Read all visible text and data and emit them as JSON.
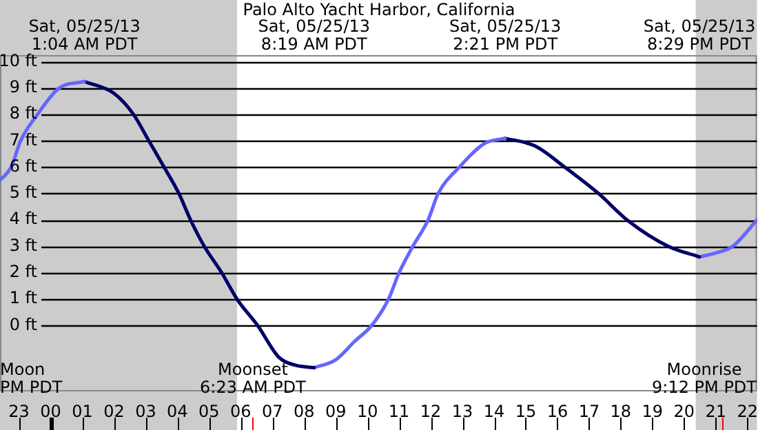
{
  "chart_data": {
    "type": "line",
    "title": "Palo Alto Yacht Harbor, California",
    "xlim": [
      "--05-24T22:24",
      "--05-25T22:18"
    ],
    "ylim": [
      -2.5,
      10.25
    ],
    "xticks": [
      {
        "value": "--05-24T23:00",
        "label": "23"
      },
      {
        "value": "--05-25T00:00",
        "label": "00"
      },
      {
        "value": "--05-25T01:00",
        "label": "01"
      },
      {
        "value": "--05-25T02:00",
        "label": "02"
      },
      {
        "value": "--05-25T03:00",
        "label": "03"
      },
      {
        "value": "--05-25T04:00",
        "label": "04"
      },
      {
        "value": "--05-25T05:00",
        "label": "05"
      },
      {
        "value": "--05-25T06:00",
        "label": "06"
      },
      {
        "value": "--05-25T07:00",
        "label": "07"
      },
      {
        "value": "--05-25T08:00",
        "label": "08"
      },
      {
        "value": "--05-25T09:00",
        "label": "09"
      },
      {
        "value": "--05-25T10:00",
        "label": "10"
      },
      {
        "value": "--05-25T11:00",
        "label": "11"
      },
      {
        "value": "--05-25T12:00",
        "label": "12"
      },
      {
        "value": "--05-25T13:00",
        "label": "13"
      },
      {
        "value": "--05-25T14:00",
        "label": "14"
      },
      {
        "value": "--05-25T15:00",
        "label": "15"
      },
      {
        "value": "--05-25T16:00",
        "label": "16"
      },
      {
        "value": "--05-25T17:00",
        "label": "17"
      },
      {
        "value": "--05-25T18:00",
        "label": "18"
      },
      {
        "value": "--05-25T19:00",
        "label": "19"
      },
      {
        "value": "--05-25T20:00",
        "label": "20"
      },
      {
        "value": "--05-25T21:00",
        "label": "21"
      },
      {
        "value": "--05-25T22:00",
        "label": "22"
      }
    ],
    "yticks": [
      {
        "value": 0,
        "label": "0 ft"
      },
      {
        "value": 1,
        "label": "1 ft"
      },
      {
        "value": 2,
        "label": "2 ft"
      },
      {
        "value": 3,
        "label": "3 ft"
      },
      {
        "value": 4,
        "label": "4 ft"
      },
      {
        "value": 5,
        "label": "5 ft"
      },
      {
        "value": 6,
        "label": "6 ft"
      },
      {
        "value": 7,
        "label": "7 ft"
      },
      {
        "value": 8,
        "label": "8 ft"
      },
      {
        "value": 9,
        "label": "9 ft"
      },
      {
        "value": 10,
        "label": "10 ft"
      }
    ],
    "grid": "y",
    "marker": "none",
    "line_style": "solid",
    "series": [
      {
        "color": "#6666ff",
        "x": [
          "--05-24T22:24",
          "--05-24T22:45",
          "--05-24T23:03",
          "--05-24T23:35",
          "--05-25T00:16",
          "--05-25T01:04"
        ],
        "values": [
          5.5,
          6,
          7,
          8,
          9,
          9.25
        ]
      },
      {
        "color": "#000066",
        "x": [
          "--05-25T01:04",
          "--05-25T02:00",
          "--05-25T02:37",
          "--05-25T03:06",
          "--05-25T03:35",
          "--05-25T04:03",
          "--05-25T04:25",
          "--05-25T04:51",
          "--05-25T05:24",
          "--05-25T05:53",
          "--05-25T06:32",
          "--05-25T07:12",
          "--05-25T07:42",
          "--05-25T08:19"
        ],
        "values": [
          9.25,
          8.8,
          8,
          7,
          6,
          5,
          4,
          3,
          2,
          1,
          0,
          -1.2,
          -1.5,
          -1.6
        ]
      },
      {
        "color": "#6666ff",
        "x": [
          "--05-25T08:19",
          "--05-25T09:00",
          "--05-25T09:36",
          "--05-25T10:08",
          "--05-25T10:40",
          "--05-25T11:00",
          "--05-25T11:26",
          "--05-25T11:55",
          "--05-25T12:14",
          "--05-25T12:54",
          "--05-25T13:42",
          "--05-25T14:21"
        ],
        "values": [
          -1.6,
          -1.3,
          -0.6,
          0,
          1,
          2,
          3,
          4,
          5,
          6,
          6.9,
          7.1
        ]
      },
      {
        "color": "#000066",
        "x": [
          "--05-25T14:21",
          "--05-25T15:18",
          "--05-25T16:14",
          "--05-25T17:18",
          "--05-25T18:12",
          "--05-25T19:30",
          "--05-25T20:29"
        ],
        "values": [
          7.1,
          6.8,
          6,
          5,
          4,
          3,
          2.6
        ]
      },
      {
        "color": "#6666ff",
        "x": [
          "--05-25T20:29",
          "--05-25T21:00",
          "--05-25T21:32",
          "--05-25T22:18"
        ],
        "values": [
          2.6,
          2.75,
          3,
          4
        ]
      }
    ],
    "bands": [
      {
        "axis": "x",
        "from": "--05-24T22:24",
        "to": "--05-25T05:53",
        "color": "#cccccc"
      },
      {
        "axis": "x",
        "from": "--05-25T20:22",
        "to": "--05-25T22:18",
        "color": "#cccccc"
      }
    ],
    "ref_lines": [
      {
        "axis": "x",
        "value": "--05-25T06:23",
        "label": "Moonset\n6:23 AM PDT",
        "color": "#ff0000"
      },
      {
        "axis": "x",
        "value": "--05-25T21:12",
        "label": "Moonrise\n9:12 PM PDT",
        "color": "#ff0000"
      }
    ],
    "annotations": [
      "Sat, 05/25/13\n1:04 AM PDT",
      "Sat, 05/25/13\n8:19 AM PDT",
      "Sat, 05/25/13\n2:21 PM PDT",
      "Sat, 05/25/13\n8:29 PM PDT",
      "Moon\nPM PDT"
    ]
  }
}
